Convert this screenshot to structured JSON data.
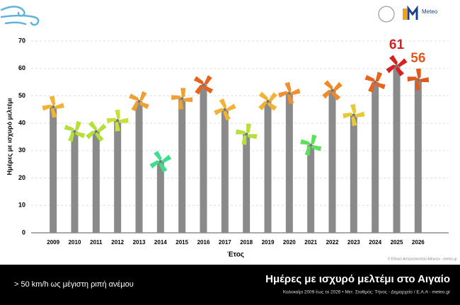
{
  "chart_data": {
    "type": "bar",
    "title": "Ημέρες με ισχυρό μελτέμι στο Αιγαίο",
    "subtitle": "Καλοκαίρι 2009 έως το 2026 • Μετ. Σταθμός: Τήνος - Δημαρχείο / Ε.Α.Α - meteo.gr",
    "note": "> 50 km/h ως μέγιστη ριπή ανέμου",
    "credit": "© Εθνικό Αστεροσκοπείο Αθηνών - meteo.gr",
    "logo_text": "Meteo",
    "x_label": "Έτος",
    "y_label": "Ημέρες με ισχυρό μελτέμι",
    "categories": [
      "2009",
      "2010",
      "2011",
      "2012",
      "2013",
      "2014",
      "2015",
      "2016",
      "2017",
      "2018",
      "2019",
      "2020",
      "2021",
      "2022",
      "2023",
      "2024",
      "2025",
      "2026"
    ],
    "values": [
      46,
      37,
      37,
      41,
      48,
      26,
      49,
      54,
      45,
      36,
      48,
      51,
      32,
      52,
      43,
      55,
      61,
      56
    ],
    "value_labels": [
      null,
      null,
      null,
      null,
      null,
      null,
      null,
      null,
      null,
      null,
      null,
      null,
      null,
      null,
      null,
      null,
      "61",
      "56"
    ],
    "color": "#8a8a8a",
    "marker_colors": [
      "#f2b234",
      "#b5e03a",
      "#b5e03a",
      "#c9e03a",
      "#f0a030",
      "#3de08a",
      "#f0a030",
      "#e8641e",
      "#f2b234",
      "#b5e03a",
      "#f2b234",
      "#f09030",
      "#5ee05a",
      "#f08a28",
      "#e8c838",
      "#e8641e",
      "#d92020",
      "#e05a1e"
    ],
    "ylim": [
      0,
      70
    ],
    "yticks": [
      0,
      10,
      20,
      30,
      40,
      50,
      60,
      70
    ],
    "grid": true
  }
}
